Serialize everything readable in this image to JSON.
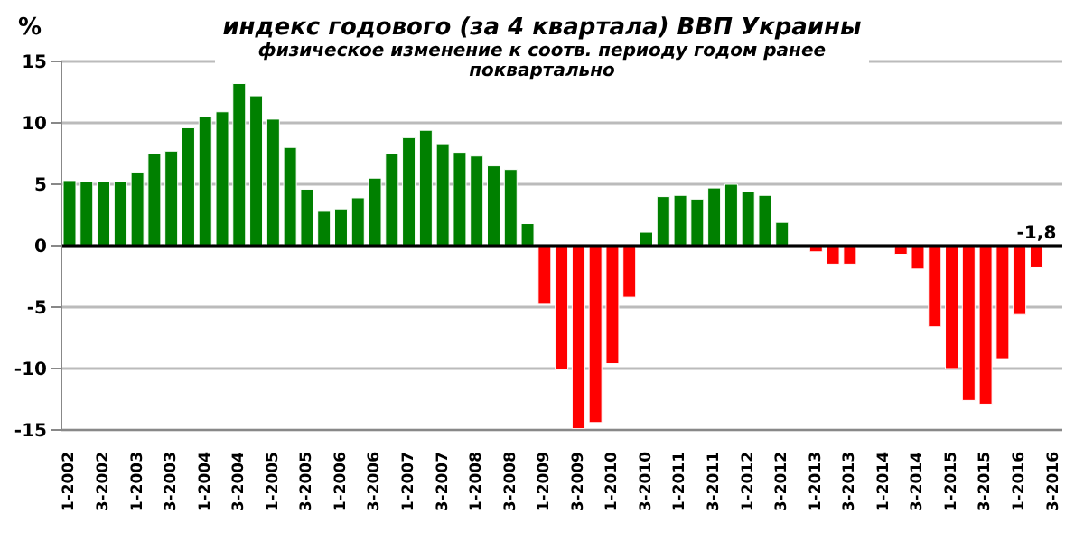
{
  "chart_data": {
    "type": "bar",
    "title": "индекс годового (за 4 квартала) ВВП Украины",
    "subtitle": "физическое изменение к соотв. периоду годом ранее поквартально",
    "ylabel": "%",
    "categories": [
      "1-2002",
      null,
      "3-2002",
      null,
      "1-2003",
      null,
      "3-2003",
      null,
      "1-2004",
      null,
      "3-2004",
      null,
      "1-2005",
      null,
      "3-2005",
      null,
      "1-2006",
      null,
      "3-2006",
      null,
      "1-2007",
      null,
      "3-2007",
      null,
      "1-2008",
      null,
      "3-2008",
      null,
      "1-2009",
      null,
      "3-2009",
      null,
      "1-2010",
      null,
      "3-2010",
      null,
      "1-2011",
      null,
      "3-2011",
      null,
      "1-2012",
      null,
      "3-2012",
      null,
      "1-2013",
      null,
      "3-2013",
      null,
      "1-2014",
      null,
      "3-2014",
      null,
      "1-2015",
      null,
      "3-2015",
      null,
      "1-2016",
      null,
      "3-2016"
    ],
    "values": [
      5.3,
      5.2,
      5.2,
      5.2,
      6.0,
      7.5,
      7.7,
      9.6,
      10.5,
      10.9,
      13.2,
      12.2,
      10.3,
      8.0,
      4.6,
      2.8,
      3.0,
      3.9,
      5.5,
      7.5,
      8.8,
      9.4,
      8.3,
      7.6,
      7.3,
      6.5,
      6.2,
      1.8,
      -4.7,
      -10.1,
      -14.9,
      -14.4,
      -9.6,
      -4.2,
      1.1,
      4.0,
      4.1,
      3.8,
      4.7,
      5.0,
      4.4,
      4.1,
      1.9,
      null,
      -0.5,
      -1.5,
      -1.5,
      null,
      null,
      -0.7,
      -1.9,
      -6.6,
      -10.0,
      -12.6,
      -12.9,
      -9.2,
      -5.6,
      -1.8,
      null
    ],
    "colors": [
      "#008000",
      "#008000",
      "#008000",
      "#008000",
      "#008000",
      "#008000",
      "#008000",
      "#008000",
      "#008000",
      "#008000",
      "#008000",
      "#008000",
      "#008000",
      "#008000",
      "#008000",
      "#008000",
      "#008000",
      "#008000",
      "#008000",
      "#008000",
      "#008000",
      "#008000",
      "#008000",
      "#008000",
      "#008000",
      "#008000",
      "#008000",
      "#008000",
      "#ff0000",
      "#ff0000",
      "#ff0000",
      "#ff0000",
      "#ff0000",
      "#ff0000",
      "#008000",
      "#008000",
      "#008000",
      "#008000",
      "#008000",
      "#008000",
      "#008000",
      "#008000",
      "#008000",
      null,
      "#ff0000",
      "#ff0000",
      "#ff0000",
      null,
      null,
      "#ff0000",
      "#ff0000",
      "#ff0000",
      "#ff0000",
      "#ff0000",
      "#ff0000",
      "#ff0000",
      "#ff0000",
      "#ff0000",
      null
    ],
    "value_labels": [
      null,
      null,
      null,
      null,
      null,
      null,
      null,
      null,
      null,
      null,
      null,
      null,
      null,
      null,
      null,
      null,
      null,
      null,
      null,
      null,
      null,
      null,
      null,
      null,
      null,
      null,
      null,
      null,
      null,
      null,
      null,
      null,
      null,
      null,
      null,
      null,
      null,
      null,
      null,
      null,
      null,
      null,
      null,
      null,
      null,
      null,
      null,
      null,
      null,
      null,
      null,
      null,
      null,
      null,
      null,
      null,
      null,
      "-1,8",
      null
    ],
    "ylim": [
      -15,
      15
    ],
    "yticks": [
      -15,
      -10,
      -5,
      0,
      5,
      10,
      15
    ],
    "grid": "y"
  }
}
